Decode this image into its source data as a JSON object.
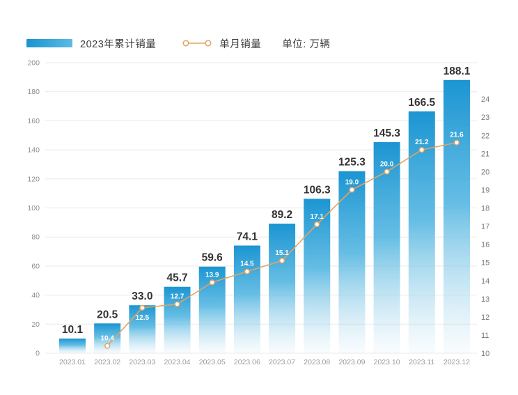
{
  "legend": {
    "bar_label": "2023年累计销量",
    "line_label": "单月销量",
    "unit_label": "单位: 万辆"
  },
  "colors": {
    "bar_top": "#1b95d2",
    "bar_mid": "#54b6e1",
    "line": "#e3a462",
    "grid": "#e9e9e9",
    "bar_value_text": "#333333",
    "monthly_value_text": "#ffffff",
    "left_tick_text": "#8c8c8c",
    "right_tick_text": "#757575",
    "x_tick_text": "#9a9a9a"
  },
  "chart_data": {
    "type": "combo",
    "categories": [
      "2023.01",
      "2023.02",
      "2023.03",
      "2023.04",
      "2023.05",
      "2023.06",
      "2023.07",
      "2023.08",
      "2023.09",
      "2023.10",
      "2023.11",
      "2023.12"
    ],
    "series": [
      {
        "name": "2023年累计销量",
        "type": "bar",
        "axis": "left",
        "values": [
          10.1,
          20.5,
          33.0,
          45.7,
          59.6,
          74.1,
          89.2,
          106.3,
          125.3,
          145.3,
          166.5,
          188.1
        ]
      },
      {
        "name": "单月销量",
        "type": "line",
        "axis": "right",
        "values": [
          null,
          10.4,
          12.5,
          12.7,
          13.9,
          14.5,
          15.1,
          17.1,
          19.0,
          20.0,
          21.2,
          21.6
        ]
      }
    ],
    "left_axis": {
      "min": 0,
      "max": 200,
      "tick_step": 20,
      "ticks": [
        0,
        20,
        40,
        60,
        80,
        100,
        120,
        140,
        160,
        180,
        200
      ]
    },
    "right_axis": {
      "min": 10,
      "max": 26,
      "ticks": [
        10,
        11,
        12,
        13,
        14,
        15,
        16,
        17,
        18,
        19,
        20,
        21,
        22,
        23,
        24
      ]
    },
    "unit": "万辆",
    "grid": "horizontal",
    "legend_position": "top-left"
  }
}
